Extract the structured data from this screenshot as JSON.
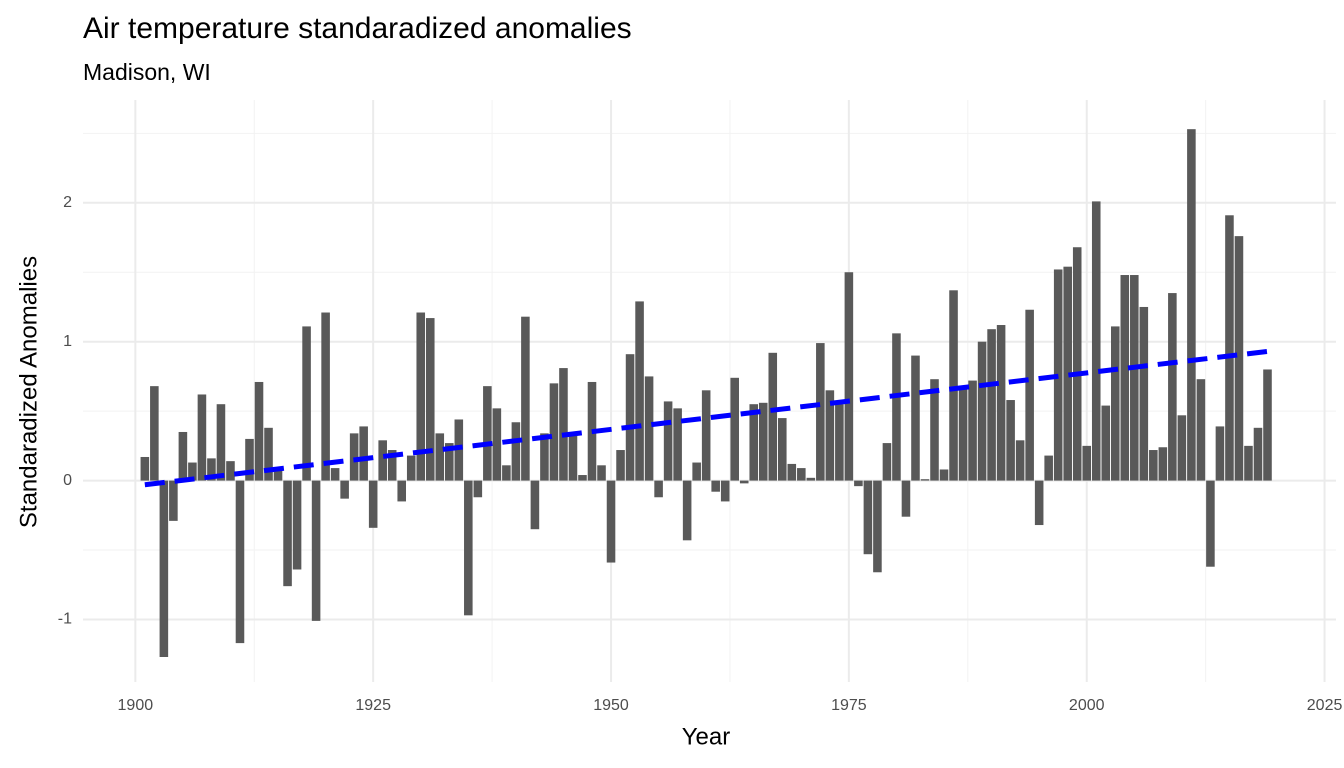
{
  "chart_data": {
    "type": "bar",
    "title": "Air temperature standaradized anomalies",
    "subtitle": "Madison, WI",
    "x_label": "Year",
    "y_label": "Standaradized Anomalies",
    "x": [
      1901,
      1902,
      1903,
      1904,
      1905,
      1906,
      1907,
      1908,
      1909,
      1910,
      1911,
      1912,
      1913,
      1914,
      1915,
      1916,
      1917,
      1918,
      1919,
      1920,
      1921,
      1922,
      1923,
      1924,
      1925,
      1926,
      1927,
      1928,
      1929,
      1930,
      1931,
      1932,
      1933,
      1934,
      1935,
      1936,
      1937,
      1938,
      1939,
      1940,
      1941,
      1942,
      1943,
      1944,
      1945,
      1946,
      1947,
      1948,
      1949,
      1950,
      1951,
      1952,
      1953,
      1954,
      1955,
      1956,
      1957,
      1958,
      1959,
      1960,
      1961,
      1962,
      1963,
      1964,
      1965,
      1966,
      1967,
      1968,
      1969,
      1970,
      1971,
      1972,
      1973,
      1974,
      1975,
      1976,
      1977,
      1978,
      1979,
      1980,
      1981,
      1982,
      1983,
      1984,
      1985,
      1986,
      1987,
      1988,
      1989,
      1990,
      1991,
      1992,
      1993,
      1994,
      1995,
      1996,
      1997,
      1998,
      1999,
      2000,
      2001,
      2002,
      2003,
      2004,
      2005,
      2006,
      2007,
      2008,
      2009,
      2010,
      2011,
      2012,
      2013,
      2014,
      2015,
      2016,
      2017,
      2018,
      2019
    ],
    "values": [
      0.17,
      0.68,
      -1.27,
      -0.29,
      0.35,
      0.13,
      0.62,
      0.16,
      0.55,
      0.14,
      -1.17,
      0.3,
      0.71,
      0.38,
      0.09,
      -0.76,
      -0.64,
      1.11,
      -1.01,
      1.21,
      0.09,
      -0.13,
      0.34,
      0.39,
      -0.34,
      0.29,
      0.22,
      -0.15,
      0.18,
      1.21,
      1.17,
      0.34,
      0.27,
      0.44,
      -0.97,
      -0.12,
      0.68,
      0.52,
      0.11,
      0.42,
      1.18,
      -0.35,
      0.34,
      0.7,
      0.81,
      0.35,
      0.04,
      0.71,
      0.11,
      -0.59,
      0.22,
      0.91,
      1.29,
      0.75,
      -0.12,
      0.57,
      0.52,
      -0.43,
      0.13,
      0.65,
      -0.08,
      -0.15,
      0.74,
      -0.02,
      0.55,
      0.56,
      0.92,
      0.45,
      0.12,
      0.09,
      0.02,
      0.99,
      0.65,
      0.55,
      1.5,
      -0.04,
      -0.53,
      -0.66,
      0.27,
      1.06,
      -0.26,
      0.9,
      0.01,
      0.73,
      0.08,
      1.37,
      0.68,
      0.72,
      1.0,
      1.09,
      1.12,
      0.58,
      0.29,
      1.23,
      -0.32,
      0.18,
      1.52,
      1.54,
      1.68,
      0.25,
      2.01,
      0.54,
      1.11,
      1.48,
      1.48,
      1.25,
      0.22,
      0.24,
      1.35,
      0.47,
      2.53,
      0.73,
      -0.62,
      0.39,
      1.91,
      1.76,
      0.25,
      0.38,
      0.8
    ],
    "color": "#595959",
    "trend": {
      "x": [
        1901,
        2019
      ],
      "values": [
        -0.03,
        0.93
      ],
      "color": "#0000ff"
    },
    "xlim": [
      1894.5,
      2026.2
    ],
    "ylim": [
      -1.45,
      2.74
    ],
    "xticks": [
      1900,
      1925,
      1950,
      1975,
      2000,
      2025
    ],
    "yticks": [
      -1,
      0,
      1,
      2
    ],
    "grid": true,
    "minor_grid": true
  }
}
